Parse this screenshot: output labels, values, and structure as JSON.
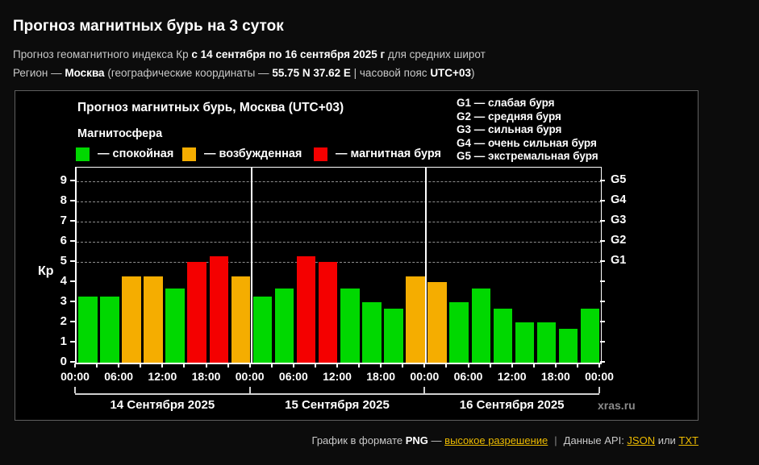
{
  "header": {
    "title": "Прогноз магнитных бурь на 3 суток",
    "line1": {
      "pre": "Прогноз геомагнитного индекса Кр ",
      "bold": "с 14 сентября по 16 сентября 2025 г",
      "post": " для средних широт"
    },
    "line2": {
      "pre": "Регион — ",
      "region": "Москва",
      "mid1": " (географические координаты — ",
      "coords": "55.75 N 37.62 E",
      "mid2": " | часовой пояс ",
      "tz": "UTC+03",
      "post": ")"
    }
  },
  "chart": {
    "title": "Прогноз магнитных бурь, Москва (UTC+03)",
    "legend_title": "Магнитосфера",
    "legend": [
      {
        "key": "quiet",
        "label": "— спокойная"
      },
      {
        "key": "excited",
        "label": "— возбужденная"
      },
      {
        "key": "storm",
        "label": "— магнитная буря"
      }
    ],
    "g_legend": [
      "G1 — слабая буря",
      "G2 — средняя буря",
      "G3 — сильная буря",
      "G4 — очень сильная буря",
      "G5 — экстремальная буря"
    ],
    "watermark": "xras.ru"
  },
  "chart_data": {
    "type": "bar",
    "title": "Прогноз магнитных бурь, Москва (UTC+03)",
    "ylabel": "Кр",
    "ylim": [
      0,
      9
    ],
    "yticks": [
      0,
      1,
      2,
      3,
      4,
      5,
      6,
      7,
      8,
      9
    ],
    "grid": "dashed horizontal lines at Kp 5-9 (G1-G5 levels)",
    "legend_position": "top-left and top-right",
    "right_axis": [
      {
        "kp": 5,
        "label": "G1"
      },
      {
        "kp": 6,
        "label": "G2"
      },
      {
        "kp": 7,
        "label": "G3"
      },
      {
        "kp": 8,
        "label": "G4"
      },
      {
        "kp": 9,
        "label": "G5"
      }
    ],
    "time_labels": [
      "00:00",
      "06:00",
      "12:00",
      "18:00",
      "00:00",
      "06:00",
      "12:00",
      "18:00",
      "00:00",
      "06:00",
      "12:00",
      "18:00",
      "00:00"
    ],
    "days": [
      {
        "date": "14 Сентября 2025",
        "values": [
          3.3,
          3.3,
          4.3,
          4.3,
          3.7,
          5.0,
          5.3,
          4.3
        ]
      },
      {
        "date": "15 Сентября 2025",
        "values": [
          3.3,
          3.7,
          5.3,
          5.0,
          3.7,
          3.0,
          2.7,
          4.3
        ]
      },
      {
        "date": "16 Сентября 2025",
        "values": [
          4.0,
          3.0,
          3.7,
          2.7,
          2.0,
          2.0,
          1.7,
          2.7
        ]
      }
    ],
    "colors": {
      "quiet": "#00d800",
      "excited": "#f5ad00",
      "storm": "#f40000"
    },
    "thresholds": {
      "excited_from": 4,
      "storm_from": 5
    }
  },
  "footer": {
    "text1": "График в формате ",
    "png": "PNG",
    "dash": " — ",
    "link_hires": "высокое разрешение",
    "pipe": "|",
    "text2": "Данные API: ",
    "link_json": "JSON",
    "or": " или ",
    "link_txt": "TXT"
  }
}
